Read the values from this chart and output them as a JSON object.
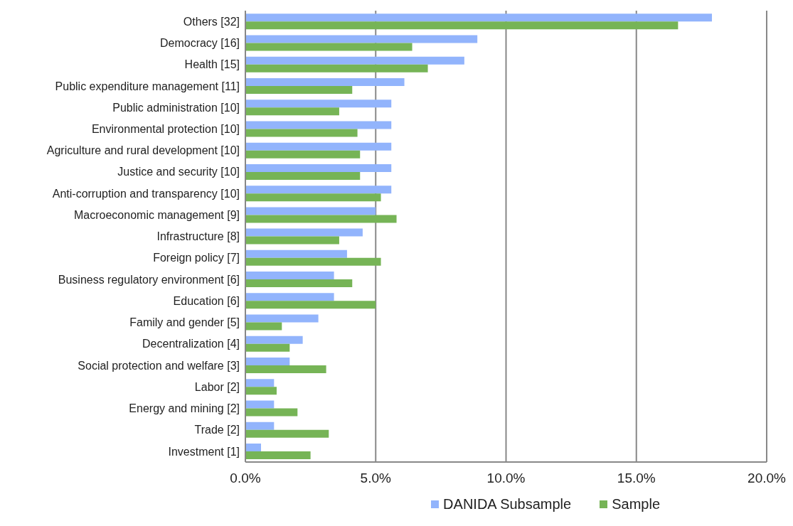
{
  "chart_data": {
    "type": "bar",
    "orientation": "horizontal",
    "categories": [
      "Others [32]",
      "Democracy [16]",
      "Health [15]",
      "Public expenditure management [11]",
      "Public administration [10]",
      "Environmental protection [10]",
      "Agriculture and rural development [10]",
      "Justice and security [10]",
      "Anti-corruption and transparency [10]",
      "Macroeconomic management [9]",
      "Infrastructure [8]",
      "Foreign policy [7]",
      "Business regulatory environment [6]",
      "Education [6]",
      "Family and gender [5]",
      "Decentralization [4]",
      "Social protection and welfare [3]",
      "Labor [2]",
      "Energy and mining [2]",
      "Trade [2]",
      "Investment [1]"
    ],
    "series": [
      {
        "name": "DANIDA Subsample",
        "color": "#92b4fc",
        "values": [
          17.9,
          8.9,
          8.4,
          6.1,
          5.6,
          5.6,
          5.6,
          5.6,
          5.6,
          5.0,
          4.5,
          3.9,
          3.4,
          3.4,
          2.8,
          2.2,
          1.7,
          1.1,
          1.1,
          1.1,
          0.6
        ]
      },
      {
        "name": "Sample",
        "color": "#76b456",
        "values": [
          16.6,
          6.4,
          7.0,
          4.1,
          3.6,
          4.3,
          4.4,
          4.4,
          5.2,
          5.8,
          3.6,
          5.2,
          4.1,
          5.0,
          1.4,
          1.7,
          3.1,
          1.2,
          2.0,
          3.2,
          2.5
        ]
      }
    ],
    "xlim": [
      0,
      20
    ],
    "xticks": [
      {
        "value": 0,
        "label": "0.0%"
      },
      {
        "value": 5,
        "label": "5.0%"
      },
      {
        "value": 10,
        "label": "10.0%"
      },
      {
        "value": 15,
        "label": "15.0%"
      },
      {
        "value": 20,
        "label": "20.0%"
      }
    ],
    "grid": "x",
    "legend": "bottom"
  }
}
